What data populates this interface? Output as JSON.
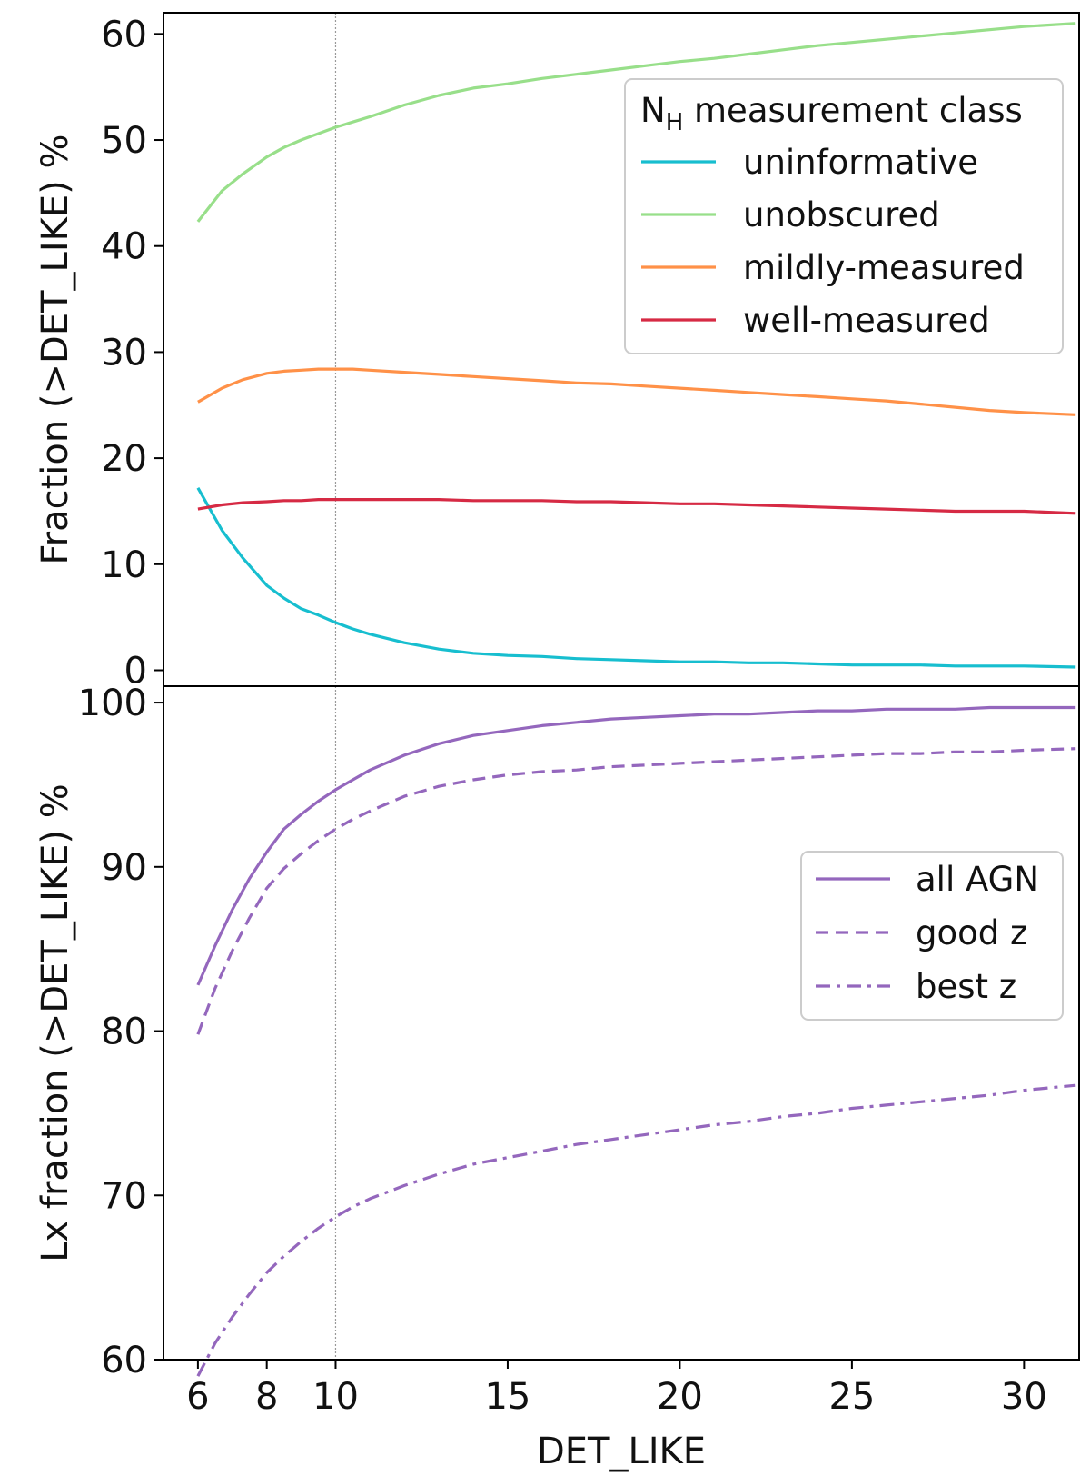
{
  "chart_data": [
    {
      "type": "line",
      "xlabel": "",
      "ylabel": "Fraction (>DET_LIKE) %",
      "xlim": [
        5.0,
        31.6
      ],
      "ylim": [
        -1.5,
        62
      ],
      "yticks": [
        "0",
        "10",
        "20",
        "30",
        "40",
        "50",
        "60"
      ],
      "ytick_values": [
        0,
        10,
        20,
        30,
        40,
        50,
        60
      ],
      "vline_x": 10,
      "legend": {
        "title_main": "N",
        "title_sub": "H",
        "title_rest": " measurement class",
        "placement": "top-right"
      },
      "x": [
        6,
        6.7,
        7.3,
        8,
        8.5,
        9,
        9.5,
        10,
        10.5,
        11,
        12,
        13,
        14,
        15,
        16,
        17,
        18,
        19,
        20,
        21,
        22,
        23,
        24,
        25,
        26,
        27,
        28,
        29,
        30,
        31.5
      ],
      "series": [
        {
          "name": "uninformative",
          "color": "#17becf",
          "style": "solid",
          "values": [
            17.2,
            13.2,
            10.6,
            8.0,
            6.8,
            5.8,
            5.2,
            4.5,
            3.9,
            3.4,
            2.6,
            2.0,
            1.6,
            1.4,
            1.3,
            1.1,
            1.0,
            0.9,
            0.8,
            0.8,
            0.7,
            0.7,
            0.6,
            0.5,
            0.5,
            0.5,
            0.4,
            0.4,
            0.4,
            0.3
          ]
        },
        {
          "name": "unobscured",
          "color": "#98df8a",
          "style": "solid",
          "values": [
            42.3,
            45.2,
            46.8,
            48.4,
            49.3,
            50.0,
            50.6,
            51.2,
            51.7,
            52.2,
            53.3,
            54.2,
            54.9,
            55.3,
            55.8,
            56.2,
            56.6,
            57.0,
            57.4,
            57.7,
            58.1,
            58.5,
            58.9,
            59.2,
            59.5,
            59.8,
            60.1,
            60.4,
            60.7,
            61.0
          ]
        },
        {
          "name": "mildly-measured",
          "color": "#ff9148",
          "style": "solid",
          "values": [
            25.3,
            26.6,
            27.4,
            28.0,
            28.2,
            28.3,
            28.4,
            28.4,
            28.4,
            28.3,
            28.1,
            27.9,
            27.7,
            27.5,
            27.3,
            27.1,
            27.0,
            26.8,
            26.6,
            26.4,
            26.2,
            26.0,
            25.8,
            25.6,
            25.4,
            25.1,
            24.8,
            24.5,
            24.3,
            24.1
          ]
        },
        {
          "name": "well-measured",
          "color": "#d62a44",
          "style": "solid",
          "values": [
            15.2,
            15.6,
            15.8,
            15.9,
            16.0,
            16.0,
            16.1,
            16.1,
            16.1,
            16.1,
            16.1,
            16.1,
            16.0,
            16.0,
            16.0,
            15.9,
            15.9,
            15.8,
            15.7,
            15.7,
            15.6,
            15.5,
            15.4,
            15.3,
            15.2,
            15.1,
            15.0,
            15.0,
            15.0,
            14.8
          ]
        }
      ]
    },
    {
      "type": "line",
      "xlabel": "DET_LIKE",
      "ylabel": "Lx fraction (>DET_LIKE) %",
      "xlim": [
        5.0,
        31.6
      ],
      "ylim": [
        60,
        101
      ],
      "xticks": [
        "6",
        "8",
        "10",
        "15",
        "20",
        "25",
        "30"
      ],
      "xtick_values": [
        6,
        8,
        10,
        15,
        20,
        25,
        30
      ],
      "yticks": [
        "60",
        "70",
        "80",
        "90",
        "100"
      ],
      "ytick_values": [
        60,
        70,
        80,
        90,
        100
      ],
      "vline_x": 10,
      "legend": {
        "placement": "center-right"
      },
      "x": [
        6,
        6.5,
        7,
        7.5,
        8,
        8.5,
        9,
        9.5,
        10,
        10.5,
        11,
        12,
        13,
        14,
        15,
        16,
        17,
        18,
        19,
        20,
        21,
        22,
        23,
        24,
        25,
        26,
        27,
        28,
        29,
        30,
        31.5
      ],
      "series": [
        {
          "name": "all AGN",
          "color": "#9467bd",
          "style": "solid",
          "values": [
            82.8,
            85.2,
            87.4,
            89.3,
            90.9,
            92.3,
            93.2,
            94.0,
            94.7,
            95.3,
            95.9,
            96.8,
            97.5,
            98.0,
            98.3,
            98.6,
            98.8,
            99.0,
            99.1,
            99.2,
            99.3,
            99.3,
            99.4,
            99.5,
            99.5,
            99.6,
            99.6,
            99.6,
            99.7,
            99.7,
            99.7
          ]
        },
        {
          "name": "good z",
          "color": "#9467bd",
          "style": "dashed",
          "values": [
            79.8,
            82.6,
            84.9,
            86.9,
            88.7,
            89.9,
            90.8,
            91.6,
            92.3,
            92.9,
            93.4,
            94.3,
            94.9,
            95.3,
            95.6,
            95.8,
            95.9,
            96.1,
            96.2,
            96.3,
            96.4,
            96.5,
            96.6,
            96.7,
            96.8,
            96.9,
            96.9,
            97.0,
            97.0,
            97.1,
            97.2
          ]
        },
        {
          "name": "best z",
          "color": "#9467bd",
          "style": "dashdot",
          "values": [
            59.0,
            61.0,
            62.6,
            64.0,
            65.3,
            66.3,
            67.2,
            68.0,
            68.7,
            69.3,
            69.8,
            70.6,
            71.3,
            71.9,
            72.3,
            72.7,
            73.1,
            73.4,
            73.7,
            74.0,
            74.3,
            74.5,
            74.8,
            75.0,
            75.3,
            75.5,
            75.7,
            75.9,
            76.1,
            76.4,
            76.7
          ]
        }
      ]
    }
  ]
}
